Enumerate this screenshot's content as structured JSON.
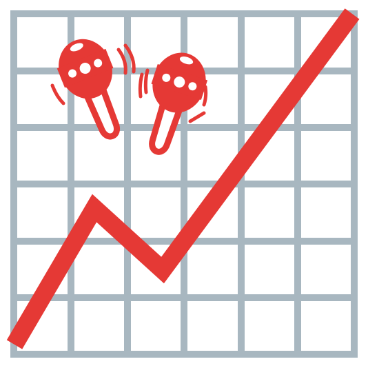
{
  "icon": {
    "name": "chart-increasing-with-maracas",
    "colors": {
      "background": "#ffffff",
      "grid": "#a8b7c0",
      "accent": "#e53935",
      "flower": "#ffffff"
    },
    "maracas": [
      {
        "name": "left-maraca",
        "flower_count": 3
      },
      {
        "name": "right-maraca",
        "flower_count": 3
      }
    ],
    "trend": "increasing"
  }
}
